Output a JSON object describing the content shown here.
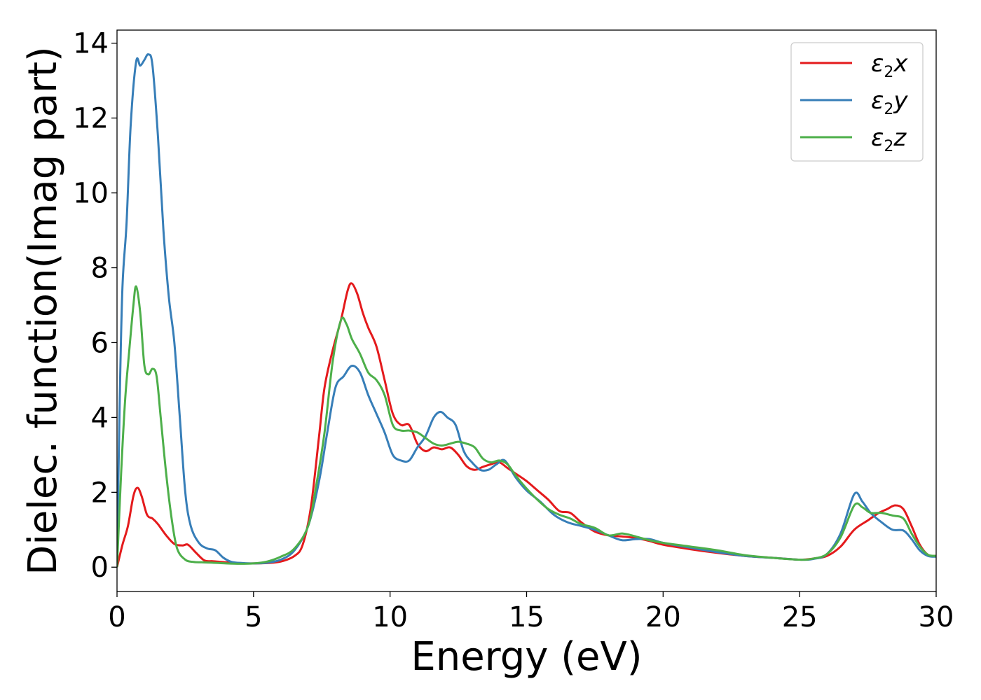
{
  "chart_data": {
    "type": "line",
    "title": "",
    "xlabel": "Energy (eV)",
    "ylabel": "Dielec. function(Imag part)",
    "xlim": [
      0,
      30
    ],
    "ylim": [
      -0.65,
      14.35
    ],
    "xticks": [
      0,
      5,
      10,
      15,
      20,
      25,
      30
    ],
    "yticks": [
      0,
      2,
      4,
      6,
      8,
      10,
      12,
      14
    ],
    "grid": false,
    "legend_position": "top-right",
    "series": [
      {
        "name": "ε₂x",
        "legend_main": "ε",
        "legend_sub": "2",
        "legend_axis": "x",
        "color": "#e41a1c",
        "x": [
          0,
          0.2,
          0.4,
          0.6,
          0.75,
          0.9,
          1.1,
          1.3,
          1.5,
          1.8,
          2.1,
          2.4,
          2.6,
          2.9,
          3.2,
          3.5,
          3.8,
          4.2,
          4.6,
          5.0,
          5.5,
          6.0,
          6.5,
          6.8,
          7.1,
          7.4,
          7.6,
          7.9,
          8.2,
          8.45,
          8.6,
          8.8,
          9.0,
          9.2,
          9.5,
          9.8,
          10.1,
          10.4,
          10.7,
          11.0,
          11.3,
          11.6,
          11.9,
          12.2,
          12.5,
          12.8,
          13.1,
          13.4,
          13.7,
          14.0,
          14.3,
          14.6,
          15.0,
          15.4,
          15.8,
          16.2,
          16.6,
          17.0,
          17.5,
          18.0,
          18.5,
          19.0,
          19.5,
          20.0,
          21.0,
          22.0,
          23.0,
          24.0,
          25.0,
          25.5,
          26.0,
          26.5,
          27.0,
          27.5,
          27.9,
          28.2,
          28.5,
          28.8,
          29.1,
          29.4,
          29.7,
          30.0
        ],
        "y": [
          0.0,
          0.6,
          1.1,
          1.9,
          2.12,
          1.9,
          1.4,
          1.3,
          1.15,
          0.85,
          0.62,
          0.58,
          0.6,
          0.38,
          0.18,
          0.16,
          0.14,
          0.12,
          0.1,
          0.1,
          0.11,
          0.15,
          0.3,
          0.6,
          1.6,
          3.5,
          4.8,
          5.8,
          6.6,
          7.4,
          7.58,
          7.3,
          6.8,
          6.4,
          5.9,
          5.0,
          4.1,
          3.8,
          3.8,
          3.3,
          3.1,
          3.2,
          3.15,
          3.2,
          3.0,
          2.7,
          2.6,
          2.68,
          2.75,
          2.8,
          2.65,
          2.5,
          2.3,
          2.05,
          1.8,
          1.5,
          1.45,
          1.2,
          0.95,
          0.85,
          0.82,
          0.78,
          0.7,
          0.6,
          0.48,
          0.38,
          0.3,
          0.25,
          0.2,
          0.23,
          0.3,
          0.55,
          1.0,
          1.25,
          1.45,
          1.55,
          1.65,
          1.55,
          1.1,
          0.6,
          0.33,
          0.3
        ]
      },
      {
        "name": "ε₂y",
        "legend_main": "ε",
        "legend_sub": "2",
        "legend_axis": "y",
        "color": "#377eb8",
        "x": [
          0,
          0.1,
          0.2,
          0.35,
          0.5,
          0.7,
          0.85,
          1.0,
          1.15,
          1.3,
          1.5,
          1.7,
          1.9,
          2.1,
          2.3,
          2.5,
          2.7,
          3.0,
          3.3,
          3.6,
          3.9,
          4.2,
          4.6,
          5.0,
          5.5,
          6.0,
          6.5,
          7.0,
          7.4,
          7.7,
          8.0,
          8.3,
          8.6,
          8.9,
          9.2,
          9.5,
          9.8,
          10.1,
          10.4,
          10.7,
          11.0,
          11.3,
          11.6,
          11.85,
          12.1,
          12.4,
          12.7,
          13.0,
          13.3,
          13.6,
          13.9,
          14.2,
          14.6,
          15.0,
          15.5,
          16.0,
          16.5,
          17.0,
          17.5,
          18.0,
          18.5,
          19.0,
          19.5,
          20.0,
          21.0,
          22.0,
          23.0,
          24.0,
          25.0,
          25.5,
          26.0,
          26.5,
          27.0,
          27.3,
          27.6,
          28.0,
          28.4,
          28.8,
          29.1,
          29.4,
          29.7,
          30.0
        ],
        "y": [
          0.0,
          4.5,
          7.5,
          9.2,
          11.8,
          13.5,
          13.4,
          13.55,
          13.7,
          13.4,
          11.5,
          9.0,
          7.2,
          6.0,
          4.0,
          2.0,
          1.1,
          0.65,
          0.5,
          0.45,
          0.25,
          0.14,
          0.11,
          0.1,
          0.12,
          0.2,
          0.45,
          1.1,
          2.3,
          3.6,
          4.8,
          5.1,
          5.38,
          5.2,
          4.6,
          4.1,
          3.6,
          3.0,
          2.85,
          2.85,
          3.2,
          3.5,
          4.0,
          4.15,
          4.0,
          3.8,
          3.1,
          2.8,
          2.6,
          2.6,
          2.75,
          2.85,
          2.4,
          2.05,
          1.75,
          1.4,
          1.2,
          1.1,
          1.0,
          0.85,
          0.72,
          0.75,
          0.75,
          0.65,
          0.52,
          0.4,
          0.3,
          0.25,
          0.2,
          0.22,
          0.35,
          0.9,
          1.95,
          1.75,
          1.45,
          1.2,
          1.0,
          0.98,
          0.75,
          0.45,
          0.3,
          0.28
        ]
      },
      {
        "name": "ε₂z",
        "legend_main": "ε",
        "legend_sub": "2",
        "legend_axis": "z",
        "color": "#4daf4a",
        "x": [
          0,
          0.15,
          0.3,
          0.45,
          0.6,
          0.7,
          0.85,
          1.0,
          1.15,
          1.3,
          1.45,
          1.6,
          1.8,
          2.0,
          2.2,
          2.5,
          2.8,
          3.1,
          3.5,
          4.0,
          4.5,
          5.0,
          5.5,
          6.0,
          6.5,
          7.0,
          7.3,
          7.6,
          7.9,
          8.2,
          8.4,
          8.6,
          8.9,
          9.2,
          9.5,
          9.8,
          10.1,
          10.4,
          10.7,
          11.0,
          11.3,
          11.6,
          11.9,
          12.2,
          12.5,
          12.8,
          13.1,
          13.4,
          13.7,
          14.0,
          14.3,
          14.6,
          15.0,
          15.4,
          15.8,
          16.2,
          16.6,
          17.0,
          17.5,
          18.0,
          18.5,
          19.0,
          19.5,
          20.0,
          21.0,
          22.0,
          23.0,
          24.0,
          25.0,
          25.5,
          26.0,
          26.5,
          27.0,
          27.3,
          27.6,
          28.0,
          28.4,
          28.8,
          29.1,
          29.4,
          29.7,
          30.0
        ],
        "y": [
          0.0,
          2.5,
          4.5,
          5.8,
          7.0,
          7.5,
          6.8,
          5.4,
          5.15,
          5.3,
          5.1,
          4.0,
          2.5,
          1.3,
          0.5,
          0.2,
          0.14,
          0.13,
          0.12,
          0.1,
          0.09,
          0.1,
          0.15,
          0.28,
          0.5,
          1.1,
          2.2,
          3.6,
          5.5,
          6.6,
          6.5,
          6.1,
          5.7,
          5.2,
          5.0,
          4.6,
          3.8,
          3.65,
          3.65,
          3.6,
          3.45,
          3.3,
          3.25,
          3.3,
          3.35,
          3.3,
          3.2,
          2.9,
          2.8,
          2.85,
          2.75,
          2.45,
          2.1,
          1.8,
          1.55,
          1.4,
          1.3,
          1.15,
          1.05,
          0.85,
          0.9,
          0.82,
          0.72,
          0.65,
          0.55,
          0.45,
          0.32,
          0.25,
          0.2,
          0.23,
          0.35,
          0.8,
          1.65,
          1.6,
          1.45,
          1.45,
          1.38,
          1.3,
          0.9,
          0.55,
          0.33,
          0.3
        ]
      }
    ]
  }
}
